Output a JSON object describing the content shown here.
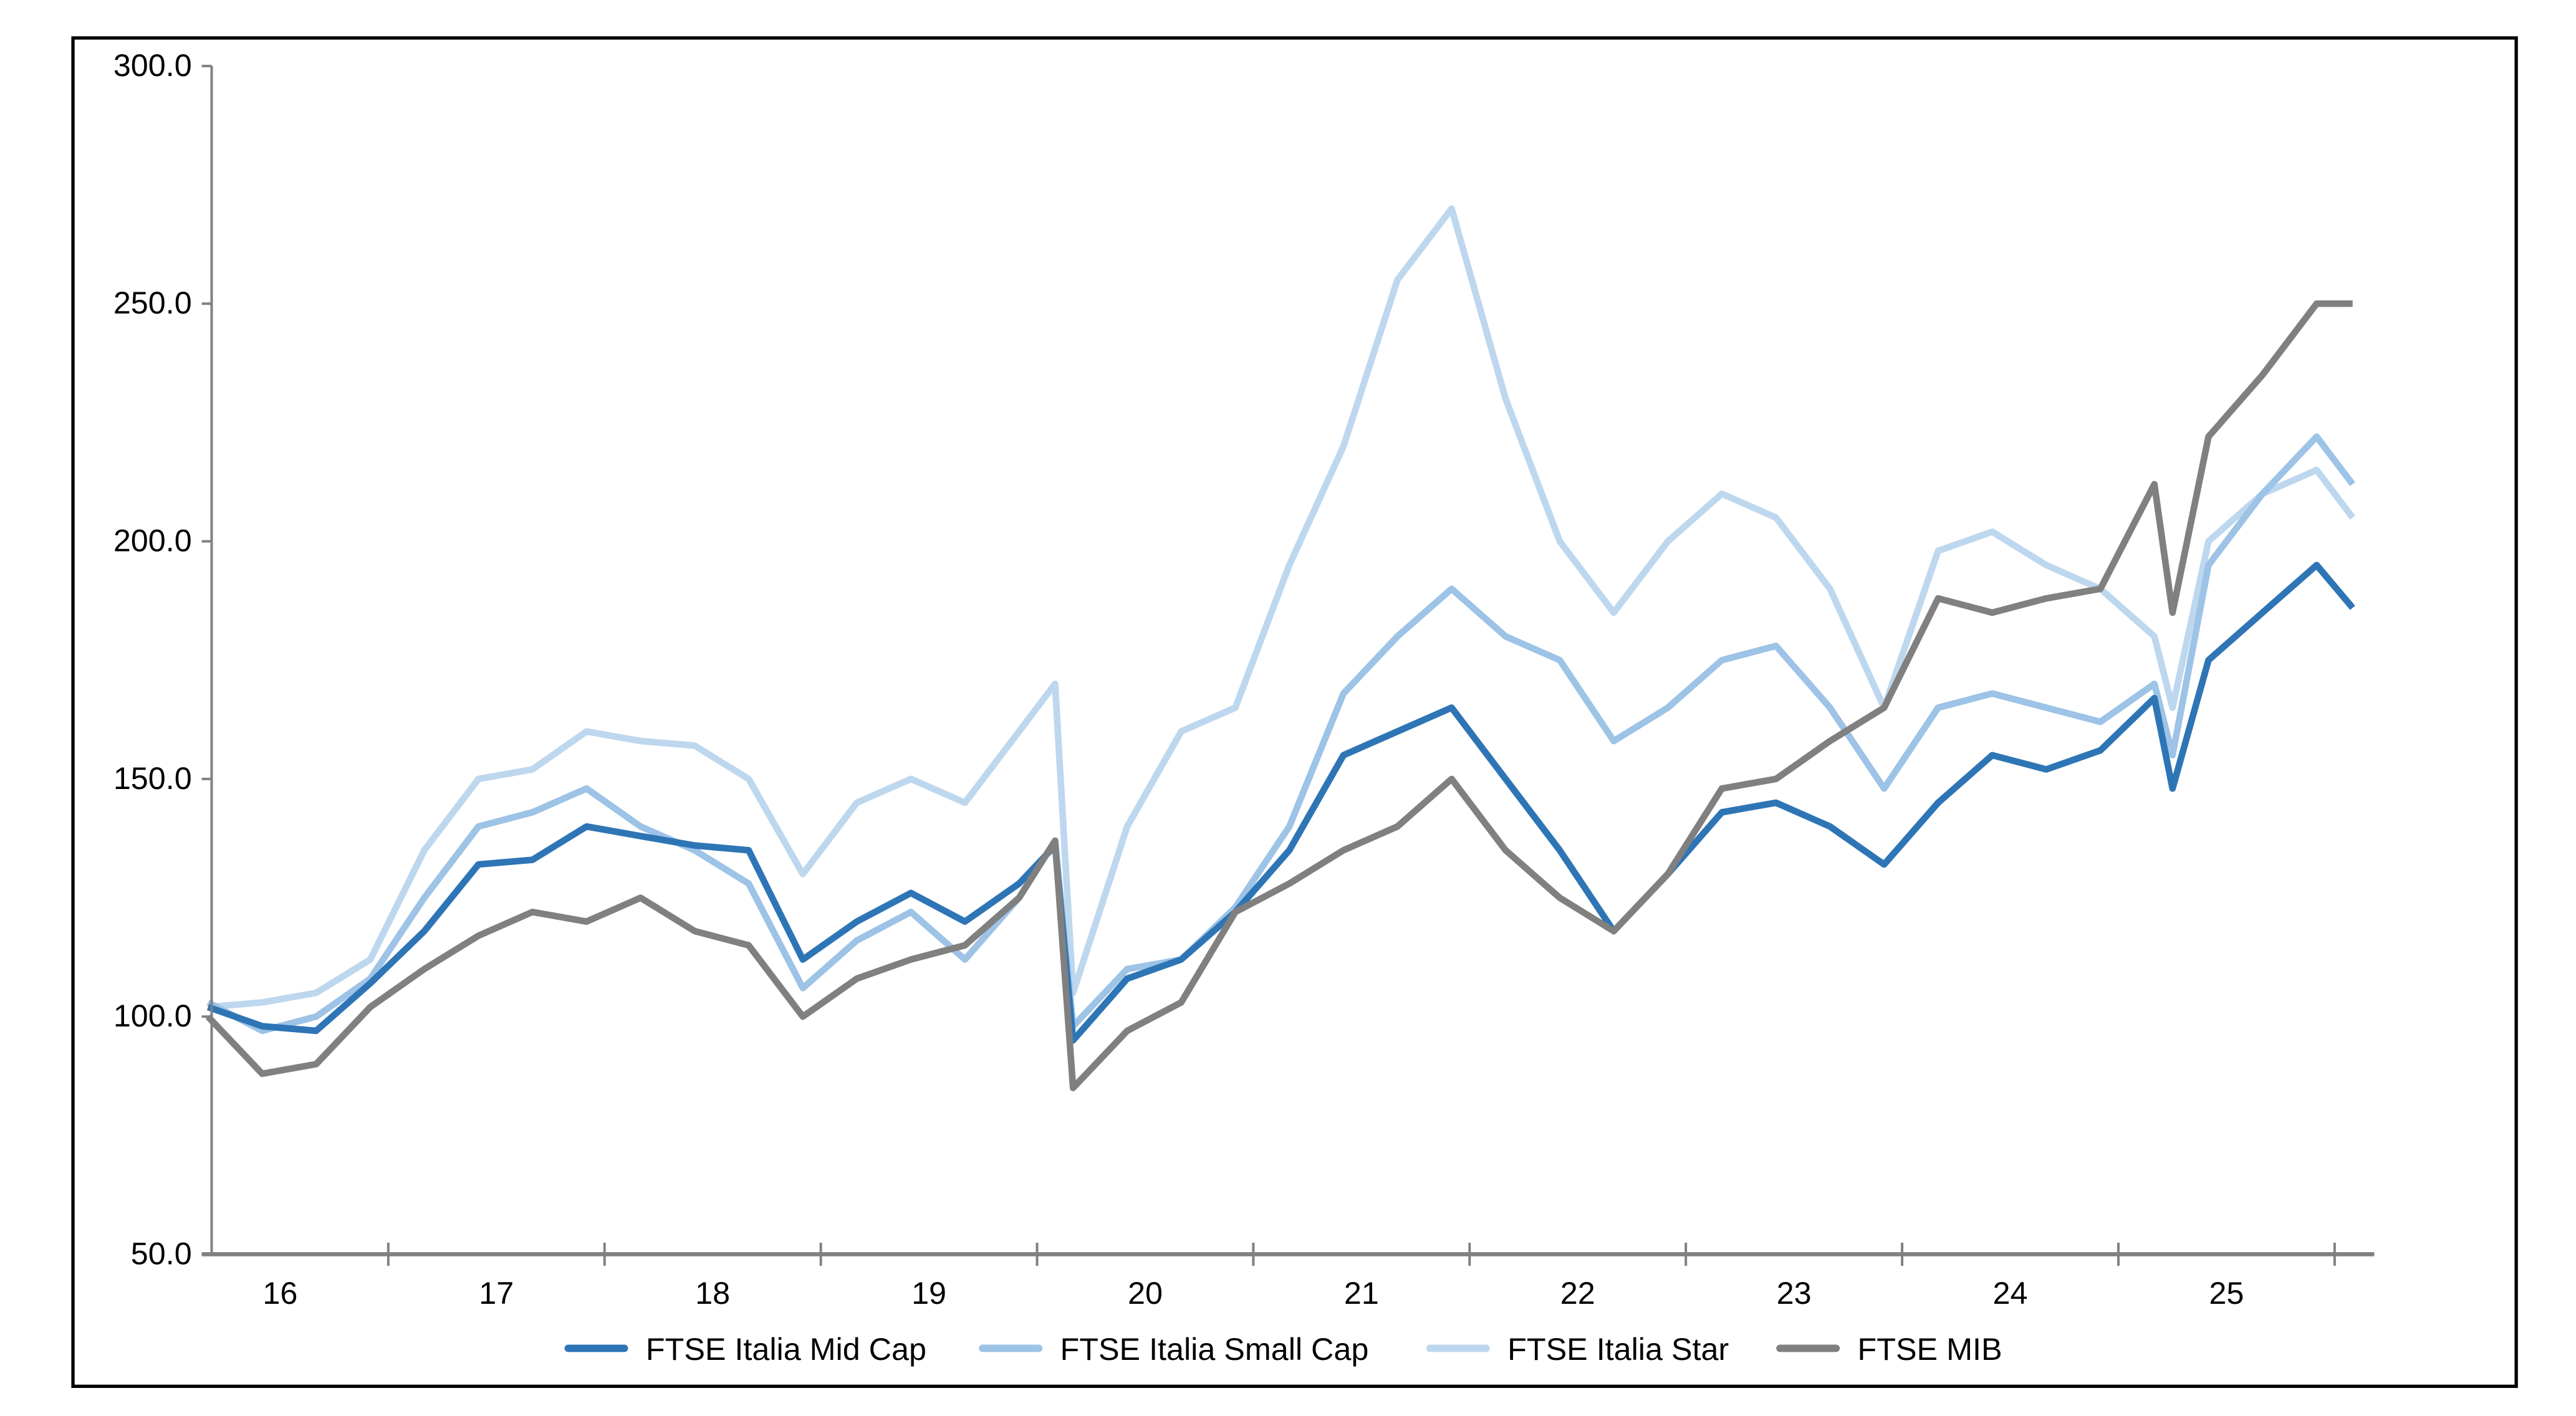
{
  "chart_data": {
    "type": "line",
    "title": "",
    "xlabel": "",
    "ylabel": "",
    "ylim": [
      50,
      300
    ],
    "yticks": [
      "300.0",
      "250.0",
      "200.0",
      "150.0",
      "100.0",
      "50.0"
    ],
    "xticks": [
      "16",
      "17",
      "18",
      "19",
      "20",
      "21",
      "22",
      "23",
      "24",
      "25"
    ],
    "xlim": [
      "2016-03",
      "2026-02"
    ],
    "grid": false,
    "legend_position": "bottom",
    "x": [
      "2016-03",
      "2016-06",
      "2016-09",
      "2016-12",
      "2017-03",
      "2017-06",
      "2017-09",
      "2017-12",
      "2018-03",
      "2018-06",
      "2018-09",
      "2018-12",
      "2019-03",
      "2019-06",
      "2019-09",
      "2019-12",
      "2020-02",
      "2020-03",
      "2020-06",
      "2020-09",
      "2020-12",
      "2021-03",
      "2021-06",
      "2021-09",
      "2021-12",
      "2022-03",
      "2022-06",
      "2022-09",
      "2022-12",
      "2023-03",
      "2023-06",
      "2023-09",
      "2023-12",
      "2024-03",
      "2024-06",
      "2024-09",
      "2024-12",
      "2025-03",
      "2025-04",
      "2025-06",
      "2025-09",
      "2025-12",
      "2026-02"
    ],
    "series": [
      {
        "name": "FTSE Italia Star",
        "color": "#bdd7ee",
        "values": [
          102,
          103,
          105,
          112,
          135,
          150,
          152,
          160,
          158,
          157,
          150,
          130,
          145,
          150,
          145,
          160,
          170,
          105,
          140,
          160,
          165,
          195,
          220,
          255,
          270,
          230,
          200,
          185,
          200,
          210,
          205,
          190,
          165,
          198,
          202,
          195,
          190,
          180,
          165,
          200,
          210,
          215,
          205
        ]
      },
      {
        "name": "FTSE Italia Small Cap",
        "color": "#9dc3e6",
        "values": [
          103,
          97,
          100,
          108,
          125,
          140,
          143,
          148,
          140,
          135,
          128,
          106,
          116,
          122,
          112,
          125,
          137,
          98,
          110,
          112,
          123,
          140,
          168,
          180,
          190,
          180,
          175,
          158,
          165,
          175,
          178,
          165,
          148,
          165,
          168,
          165,
          162,
          170,
          155,
          195,
          210,
          222,
          212
        ]
      },
      {
        "name": "FTSE Italia Mid Cap",
        "color": "#2e75b6",
        "values": [
          102,
          98,
          97,
          107,
          118,
          132,
          133,
          140,
          138,
          136,
          135,
          112,
          120,
          126,
          120,
          128,
          136,
          95,
          108,
          112,
          122,
          135,
          155,
          160,
          165,
          150,
          135,
          118,
          130,
          143,
          145,
          140,
          132,
          145,
          155,
          152,
          156,
          167,
          148,
          175,
          185,
          195,
          186
        ]
      },
      {
        "name": "FTSE MIB",
        "color": "#808080",
        "values": [
          100,
          88,
          90,
          102,
          110,
          117,
          122,
          120,
          125,
          118,
          115,
          100,
          108,
          112,
          115,
          125,
          137,
          85,
          97,
          103,
          122,
          128,
          135,
          140,
          150,
          135,
          125,
          118,
          130,
          148,
          150,
          158,
          165,
          188,
          185,
          188,
          190,
          212,
          185,
          222,
          235,
          250,
          250
        ]
      }
    ],
    "legend": [
      "FTSE Italia Mid Cap",
      "FTSE Italia Small Cap",
      "FTSE Italia Star",
      "FTSE MIB"
    ]
  }
}
